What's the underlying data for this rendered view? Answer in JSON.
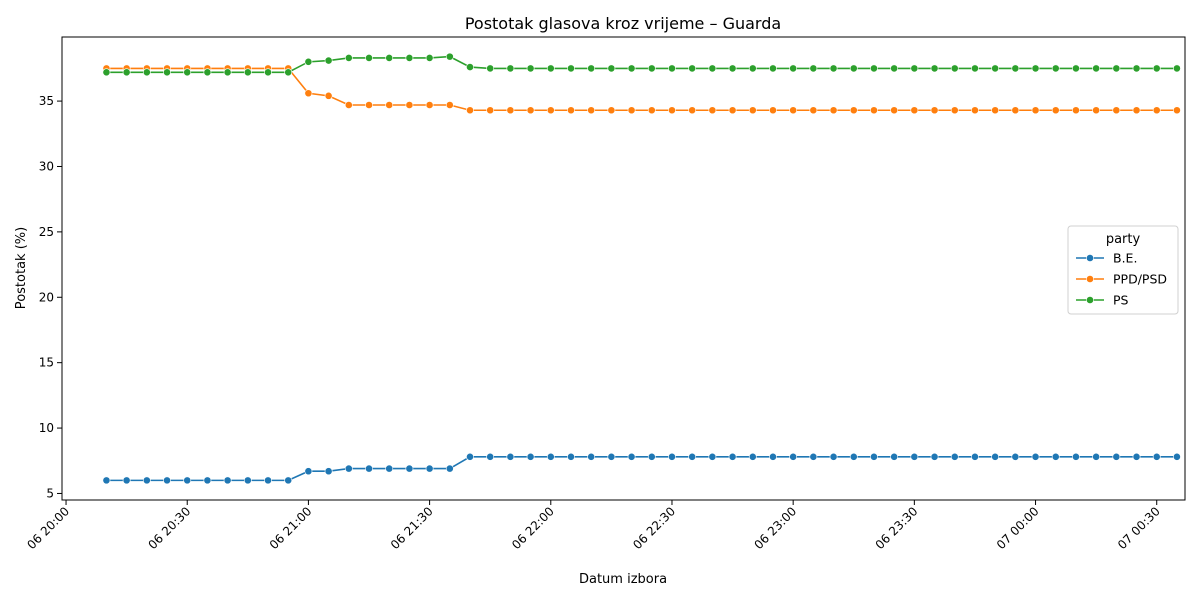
{
  "chart_data": {
    "type": "line",
    "title": "Postotak glasova kroz vrijeme – Guarda",
    "xlabel": "Datum izbora",
    "ylabel": "Postotak (%)",
    "x_ticks": [
      "06 20:00",
      "06 20:30",
      "06 21:00",
      "06 21:30",
      "06 22:00",
      "06 22:30",
      "06 23:00",
      "06 23:30",
      "07 00:00",
      "07 00:30"
    ],
    "y_ticks": [
      5,
      10,
      15,
      20,
      25,
      30,
      35
    ],
    "legend": {
      "title": "party",
      "placement": "center-right"
    },
    "grid": false,
    "x_times": [
      "06 20:10",
      "06 20:15",
      "06 20:20",
      "06 20:25",
      "06 20:30",
      "06 20:35",
      "06 20:40",
      "06 20:45",
      "06 20:50",
      "06 20:55",
      "06 21:00",
      "06 21:05",
      "06 21:10",
      "06 21:15",
      "06 21:20",
      "06 21:25",
      "06 21:30",
      "06 21:35",
      "06 21:40",
      "06 21:45",
      "06 21:50",
      "06 21:55",
      "06 22:00",
      "06 22:05",
      "06 22:10",
      "06 22:15",
      "06 22:20",
      "06 22:25",
      "06 22:30",
      "06 22:35",
      "06 22:40",
      "06 22:45",
      "06 22:50",
      "06 22:55",
      "06 23:00",
      "06 23:05",
      "06 23:10",
      "06 23:15",
      "06 23:20",
      "06 23:25",
      "06 23:30",
      "06 23:35",
      "06 23:40",
      "06 23:45",
      "06 23:50",
      "06 23:55",
      "07 00:00",
      "07 00:05",
      "07 00:10",
      "07 00:15",
      "07 00:20",
      "07 00:25",
      "07 00:30",
      "07 00:35"
    ],
    "series": [
      {
        "name": "B.E.",
        "color": "#1f77b4",
        "values": [
          6.0,
          6.0,
          6.0,
          6.0,
          6.0,
          6.0,
          6.0,
          6.0,
          6.0,
          6.0,
          6.7,
          6.7,
          6.9,
          6.9,
          6.9,
          6.9,
          6.9,
          6.9,
          7.8,
          7.8,
          7.8,
          7.8,
          7.8,
          7.8,
          7.8,
          7.8,
          7.8,
          7.8,
          7.8,
          7.8,
          7.8,
          7.8,
          7.8,
          7.8,
          7.8,
          7.8,
          7.8,
          7.8,
          7.8,
          7.8,
          7.8,
          7.8,
          7.8,
          7.8,
          7.8,
          7.8,
          7.8,
          7.8,
          7.8,
          7.8,
          7.8,
          7.8,
          7.8,
          7.8
        ]
      },
      {
        "name": "PPD/PSD",
        "color": "#ff7f0e",
        "values": [
          37.5,
          37.5,
          37.5,
          37.5,
          37.5,
          37.5,
          37.5,
          37.5,
          37.5,
          37.5,
          35.6,
          35.4,
          34.7,
          34.7,
          34.7,
          34.7,
          34.7,
          34.7,
          34.3,
          34.3,
          34.3,
          34.3,
          34.3,
          34.3,
          34.3,
          34.3,
          34.3,
          34.3,
          34.3,
          34.3,
          34.3,
          34.3,
          34.3,
          34.3,
          34.3,
          34.3,
          34.3,
          34.3,
          34.3,
          34.3,
          34.3,
          34.3,
          34.3,
          34.3,
          34.3,
          34.3,
          34.3,
          34.3,
          34.3,
          34.3,
          34.3,
          34.3,
          34.3,
          34.3
        ]
      },
      {
        "name": "PS",
        "color": "#2ca02c",
        "values": [
          37.2,
          37.2,
          37.2,
          37.2,
          37.2,
          37.2,
          37.2,
          37.2,
          37.2,
          37.2,
          38.0,
          38.1,
          38.3,
          38.3,
          38.3,
          38.3,
          38.3,
          38.4,
          37.6,
          37.5,
          37.5,
          37.5,
          37.5,
          37.5,
          37.5,
          37.5,
          37.5,
          37.5,
          37.5,
          37.5,
          37.5,
          37.5,
          37.5,
          37.5,
          37.5,
          37.5,
          37.5,
          37.5,
          37.5,
          37.5,
          37.5,
          37.5,
          37.5,
          37.5,
          37.5,
          37.5,
          37.5,
          37.5,
          37.5,
          37.5,
          37.5,
          37.5,
          37.5,
          37.5
        ]
      }
    ],
    "xlim": [
      "06 19:59",
      "07 00:37"
    ],
    "ylim": [
      4.5,
      39.9
    ]
  }
}
